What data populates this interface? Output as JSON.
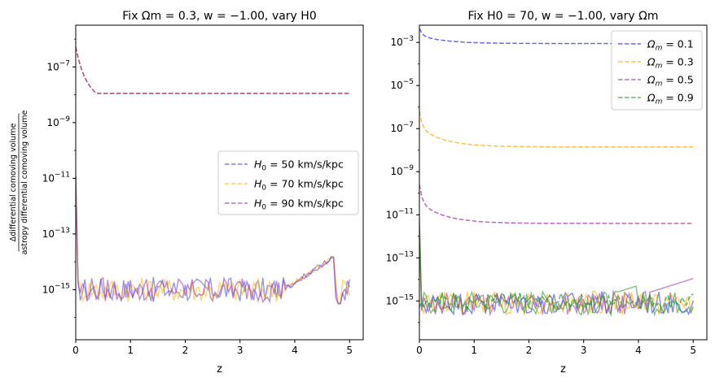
{
  "chart_data": [
    {
      "type": "line",
      "title": "Fix Ωm = 0.3, w = −1.00, vary H0",
      "xlabel": "z",
      "ylabel_numerator": "Δdifferential comoving volume",
      "ylabel_denominator": "astropy differential comoving volume",
      "yscale": "log",
      "xlim": [
        0,
        5.25
      ],
      "ylim_exp": [
        -16.8,
        -5.5
      ],
      "xticks": [
        "0",
        "1",
        "2",
        "3",
        "4",
        "5"
      ],
      "yticks": [
        {
          "base": "10",
          "exp": "−7",
          "log": -7
        },
        {
          "base": "10",
          "exp": "−9",
          "log": -9
        },
        {
          "base": "10",
          "exp": "−11",
          "log": -11
        },
        {
          "base": "10",
          "exp": "−13",
          "log": -13
        },
        {
          "base": "10",
          "exp": "−15",
          "log": -15
        }
      ],
      "legend_position": "center-right",
      "series": [
        {
          "name": "H0 = 50 km/s/kpc",
          "legend_main": "H",
          "legend_sub": "0",
          "legend_rest": " = 50 km/s/kpc",
          "color": "#4d4de8",
          "style": "dashed",
          "kind": "hubble",
          "amp": -5.65,
          "phase": 0
        },
        {
          "name": "H0 = 70 km/s/kpc",
          "legend_main": "H",
          "legend_sub": "0",
          "legend_rest": " = 70 km/s/kpc",
          "color": "#ffb81c",
          "style": "dashed",
          "kind": "hubble",
          "amp": -5.65,
          "phase": 1
        },
        {
          "name": "H0 = 90 km/s/kpc",
          "legend_main": "H",
          "legend_sub": "0",
          "legend_rest": " = 90 km/s/kpc",
          "color": "#9b3a9b",
          "style": "dashed",
          "kind": "hubble",
          "amp": -5.65,
          "phase": 2
        }
      ]
    },
    {
      "type": "line",
      "title": "Fix H0 = 70, w = −1.00, vary Ωm",
      "xlabel": "z",
      "yscale": "log",
      "xlim": [
        0,
        5.25
      ],
      "ylim_exp": [
        -16.8,
        -2.2
      ],
      "xticks": [
        "0",
        "1",
        "2",
        "3",
        "4",
        "5"
      ],
      "yticks": [
        {
          "base": "10",
          "exp": "−3",
          "log": -3
        },
        {
          "base": "10",
          "exp": "−5",
          "log": -5
        },
        {
          "base": "10",
          "exp": "−7",
          "log": -7
        },
        {
          "base": "10",
          "exp": "−9",
          "log": -9
        },
        {
          "base": "10",
          "exp": "−11",
          "log": -11
        },
        {
          "base": "10",
          "exp": "−13",
          "log": -13
        },
        {
          "base": "10",
          "exp": "−15",
          "log": -15
        }
      ],
      "legend_position": "upper-right",
      "series": [
        {
          "name": "Ωm = 0.1",
          "legend_main": "Ω",
          "legend_sub": "m",
          "legend_rest": " = 0.1",
          "color": "#3333ee",
          "style": "dashed",
          "kind": "omega",
          "start": -2.35,
          "end": -3.05,
          "phase": 0
        },
        {
          "name": "Ωm = 0.3",
          "legend_main": "Ω",
          "legend_sub": "m",
          "legend_rest": " = 0.3",
          "color": "#ffaa00",
          "style": "dashed",
          "kind": "omega",
          "start": -6.2,
          "end": -7.85,
          "phase": 1
        },
        {
          "name": "Ωm = 0.5",
          "legend_main": "Ω",
          "legend_sub": "m",
          "legend_rest": " = 0.5",
          "color": "#9b3a9b",
          "style": "dashed",
          "kind": "omega",
          "start": -9.6,
          "end": -11.4,
          "phase": 2
        },
        {
          "name": "Ωm = 0.9",
          "legend_main": "Ω",
          "legend_sub": "m",
          "legend_rest": " = 0.9",
          "color": "#2e9a2e",
          "style": "dashed",
          "kind": "omega_noise",
          "start": -11.0,
          "end": -15.1,
          "phase": 3
        }
      ]
    }
  ]
}
